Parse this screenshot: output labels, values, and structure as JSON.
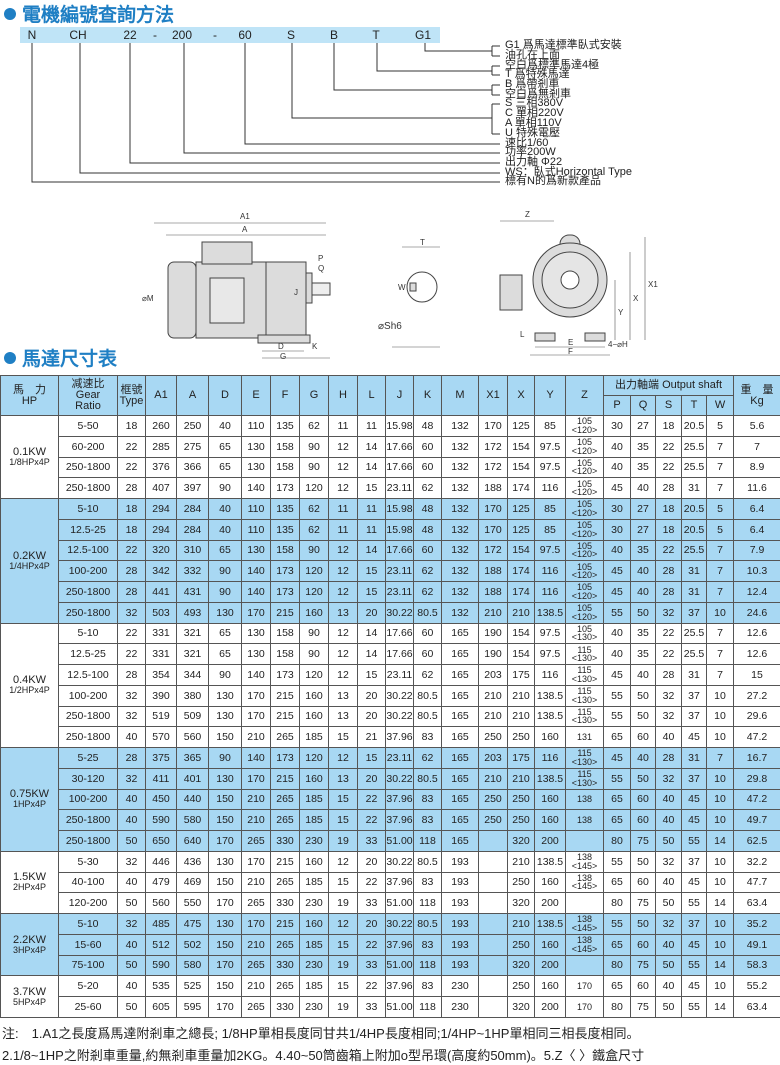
{
  "section1_title": "電機編號查詢方法",
  "code_parts": [
    "N",
    "CH",
    "22",
    "-",
    "200",
    "-",
    "60",
    "S",
    "B",
    "T",
    "G1"
  ],
  "code_legend": [
    "G1 爲馬達標準臥式安裝",
    "油孔在上面",
    "空白爲標準馬達4極",
    "T 爲特殊馬達",
    "B  爲帶剎車",
    "空白爲無剎車",
    "S   三相380V",
    "C   單相220V",
    "A   單相110V",
    "U   特殊電壓",
    "速比1/60",
    "功率200W",
    "出力軸 Φ22",
    "WS：臥式Horizontal Type",
    "標有N的爲新款產品"
  ],
  "drawing_labels": {
    "a1": "A1",
    "a": "A",
    "m": "⌀M",
    "j": "J",
    "p": "P",
    "q": "Q",
    "d": "D",
    "g": "G",
    "k": "K",
    "t": "T",
    "w": "W",
    "s": "⌀Sh6",
    "z": "Z",
    "x1": "X1",
    "x": "X",
    "y": "Y",
    "l": "L",
    "e": "E",
    "f": "F",
    "h": "4−⌀H"
  },
  "section2_title": "馬達尺寸表",
  "headers": {
    "hp": "馬　力\nHP",
    "ratio": "减速比\nGear\nRatio",
    "type": "框號\nType",
    "cols": [
      "A1",
      "A",
      "D",
      "E",
      "F",
      "G",
      "H",
      "L",
      "J",
      "K",
      "M",
      "X1",
      "X",
      "Y",
      "Z"
    ],
    "shaft": "出力軸端 Output shaft",
    "shaft_cols": [
      "P",
      "Q",
      "S",
      "T",
      "W"
    ],
    "weight": "重　量\nKg"
  },
  "colors": {
    "accent": "#1f7fc4",
    "band": "#a8d8f3"
  },
  "groups": [
    {
      "hp": "0.1KW",
      "sub": "1/8HPx4P",
      "blue": false,
      "rows": [
        [
          "5-50",
          "18",
          "260",
          "250",
          "40",
          "110",
          "135",
          "62",
          "11",
          "11",
          "15.98",
          "48",
          "132",
          "170",
          "125",
          "85",
          "105\n<120>",
          "30",
          "27",
          "18",
          "20.5",
          "5",
          "5.6"
        ],
        [
          "60-200",
          "22",
          "285",
          "275",
          "65",
          "130",
          "158",
          "90",
          "12",
          "14",
          "17.66",
          "60",
          "132",
          "172",
          "154",
          "97.5",
          "105\n<120>",
          "40",
          "35",
          "22",
          "25.5",
          "7",
          "7"
        ],
        [
          "250-1800",
          "22",
          "376",
          "366",
          "65",
          "130",
          "158",
          "90",
          "12",
          "14",
          "17.66",
          "60",
          "132",
          "172",
          "154",
          "97.5",
          "105\n<120>",
          "40",
          "35",
          "22",
          "25.5",
          "7",
          "8.9"
        ],
        [
          "250-1800",
          "28",
          "407",
          "397",
          "90",
          "140",
          "173",
          "120",
          "12",
          "15",
          "23.11",
          "62",
          "132",
          "188",
          "174",
          "116",
          "105\n<120>",
          "45",
          "40",
          "28",
          "31",
          "7",
          "11.6"
        ]
      ]
    },
    {
      "hp": "0.2KW",
      "sub": "1/4HPx4P",
      "blue": true,
      "rows": [
        [
          "5-10",
          "18",
          "294",
          "284",
          "40",
          "110",
          "135",
          "62",
          "11",
          "11",
          "15.98",
          "48",
          "132",
          "170",
          "125",
          "85",
          "105\n<120>",
          "30",
          "27",
          "18",
          "20.5",
          "5",
          "6.4"
        ],
        [
          "12.5-25",
          "18",
          "294",
          "284",
          "40",
          "110",
          "135",
          "62",
          "11",
          "11",
          "15.98",
          "48",
          "132",
          "170",
          "125",
          "85",
          "105\n<120>",
          "30",
          "27",
          "18",
          "20.5",
          "5",
          "6.4"
        ],
        [
          "12.5-100",
          "22",
          "320",
          "310",
          "65",
          "130",
          "158",
          "90",
          "12",
          "14",
          "17.66",
          "60",
          "132",
          "172",
          "154",
          "97.5",
          "105\n<120>",
          "40",
          "35",
          "22",
          "25.5",
          "7",
          "7.9"
        ],
        [
          "100-200",
          "28",
          "342",
          "332",
          "90",
          "140",
          "173",
          "120",
          "12",
          "15",
          "23.11",
          "62",
          "132",
          "188",
          "174",
          "116",
          "105\n<120>",
          "45",
          "40",
          "28",
          "31",
          "7",
          "10.3"
        ],
        [
          "250-1800",
          "28",
          "441",
          "431",
          "90",
          "140",
          "173",
          "120",
          "12",
          "15",
          "23.11",
          "62",
          "132",
          "188",
          "174",
          "116",
          "105\n<120>",
          "45",
          "40",
          "28",
          "31",
          "7",
          "12.4"
        ],
        [
          "250-1800",
          "32",
          "503",
          "493",
          "130",
          "170",
          "215",
          "160",
          "13",
          "20",
          "30.22",
          "80.5",
          "132",
          "210",
          "210",
          "138.5",
          "105\n<120>",
          "55",
          "50",
          "32",
          "37",
          "10",
          "24.6"
        ]
      ]
    },
    {
      "hp": "0.4KW",
      "sub": "1/2HPx4P",
      "blue": false,
      "rows": [
        [
          "5-10",
          "22",
          "331",
          "321",
          "65",
          "130",
          "158",
          "90",
          "12",
          "14",
          "17.66",
          "60",
          "165",
          "190",
          "154",
          "97.5",
          "105\n<130>",
          "40",
          "35",
          "22",
          "25.5",
          "7",
          "12.6"
        ],
        [
          "12.5-25",
          "22",
          "331",
          "321",
          "65",
          "130",
          "158",
          "90",
          "12",
          "14",
          "17.66",
          "60",
          "165",
          "190",
          "154",
          "97.5",
          "115\n<130>",
          "40",
          "35",
          "22",
          "25.5",
          "7",
          "12.6"
        ],
        [
          "12.5-100",
          "28",
          "354",
          "344",
          "90",
          "140",
          "173",
          "120",
          "12",
          "15",
          "23.11",
          "62",
          "165",
          "203",
          "175",
          "116",
          "115\n<130>",
          "45",
          "40",
          "28",
          "31",
          "7",
          "15"
        ],
        [
          "100-200",
          "32",
          "390",
          "380",
          "130",
          "170",
          "215",
          "160",
          "13",
          "20",
          "30.22",
          "80.5",
          "165",
          "210",
          "210",
          "138.5",
          "115\n<130>",
          "55",
          "50",
          "32",
          "37",
          "10",
          "27.2"
        ],
        [
          "250-1800",
          "32",
          "519",
          "509",
          "130",
          "170",
          "215",
          "160",
          "13",
          "20",
          "30.22",
          "80.5",
          "165",
          "210",
          "210",
          "138.5",
          "115\n<130>",
          "55",
          "50",
          "32",
          "37",
          "10",
          "29.6"
        ],
        [
          "250-1800",
          "40",
          "570",
          "560",
          "150",
          "210",
          "265",
          "185",
          "15",
          "21",
          "37.96",
          "83",
          "165",
          "250",
          "250",
          "160",
          "131",
          "65",
          "60",
          "40",
          "45",
          "10",
          "47.2"
        ]
      ]
    },
    {
      "hp": "0.75KW",
      "sub": "1HPx4P",
      "blue": true,
      "rows": [
        [
          "5-25",
          "28",
          "375",
          "365",
          "90",
          "140",
          "173",
          "120",
          "12",
          "15",
          "23.11",
          "62",
          "165",
          "203",
          "175",
          "116",
          "115\n<130>",
          "45",
          "40",
          "28",
          "31",
          "7",
          "16.7"
        ],
        [
          "30-120",
          "32",
          "411",
          "401",
          "130",
          "170",
          "215",
          "160",
          "13",
          "20",
          "30.22",
          "80.5",
          "165",
          "210",
          "210",
          "138.5",
          "115\n<130>",
          "55",
          "50",
          "32",
          "37",
          "10",
          "29.8"
        ],
        [
          "100-200",
          "40",
          "450",
          "440",
          "150",
          "210",
          "265",
          "185",
          "15",
          "22",
          "37.96",
          "83",
          "165",
          "250",
          "250",
          "160",
          "138",
          "65",
          "60",
          "40",
          "45",
          "10",
          "47.2"
        ],
        [
          "250-1800",
          "40",
          "590",
          "580",
          "150",
          "210",
          "265",
          "185",
          "15",
          "22",
          "37.96",
          "83",
          "165",
          "250",
          "250",
          "160",
          "138",
          "65",
          "60",
          "40",
          "45",
          "10",
          "49.7"
        ],
        [
          "250-1800",
          "50",
          "650",
          "640",
          "170",
          "265",
          "330",
          "230",
          "19",
          "33",
          "51.00",
          "118",
          "165",
          "",
          "320",
          "200",
          "",
          "80",
          "75",
          "50",
          "55",
          "14",
          "62.5"
        ]
      ]
    },
    {
      "hp": "1.5KW",
      "sub": "2HPx4P",
      "blue": false,
      "rows": [
        [
          "5-30",
          "32",
          "446",
          "436",
          "130",
          "170",
          "215",
          "160",
          "12",
          "20",
          "30.22",
          "80.5",
          "193",
          "",
          "210",
          "138.5",
          "138\n<145>",
          "55",
          "50",
          "32",
          "37",
          "10",
          "32.2"
        ],
        [
          "40-100",
          "40",
          "479",
          "469",
          "150",
          "210",
          "265",
          "185",
          "15",
          "22",
          "37.96",
          "83",
          "193",
          "",
          "250",
          "160",
          "138\n<145>",
          "65",
          "60",
          "40",
          "45",
          "10",
          "47.7"
        ],
        [
          "120-200",
          "50",
          "560",
          "550",
          "170",
          "265",
          "330",
          "230",
          "19",
          "33",
          "51.00",
          "118",
          "193",
          "",
          "320",
          "200",
          "",
          "80",
          "75",
          "50",
          "55",
          "14",
          "63.4"
        ]
      ]
    },
    {
      "hp": "2.2KW",
      "sub": "3HPx4P",
      "blue": true,
      "rows": [
        [
          "5-10",
          "32",
          "485",
          "475",
          "130",
          "170",
          "215",
          "160",
          "12",
          "20",
          "30.22",
          "80.5",
          "193",
          "",
          "210",
          "138.5",
          "138\n<145>",
          "55",
          "50",
          "32",
          "37",
          "10",
          "35.2"
        ],
        [
          "15-60",
          "40",
          "512",
          "502",
          "150",
          "210",
          "265",
          "185",
          "15",
          "22",
          "37.96",
          "83",
          "193",
          "",
          "250",
          "160",
          "138\n<145>",
          "65",
          "60",
          "40",
          "45",
          "10",
          "49.1"
        ],
        [
          "75-100",
          "50",
          "590",
          "580",
          "170",
          "265",
          "330",
          "230",
          "19",
          "33",
          "51.00",
          "118",
          "193",
          "",
          "320",
          "200",
          "",
          "80",
          "75",
          "50",
          "55",
          "14",
          "58.3"
        ]
      ]
    },
    {
      "hp": "3.7KW",
      "sub": "5HPx4P",
      "blue": false,
      "rows": [
        [
          "5-20",
          "40",
          "535",
          "525",
          "150",
          "210",
          "265",
          "185",
          "15",
          "22",
          "37.96",
          "83",
          "230",
          "",
          "250",
          "160",
          "170",
          "65",
          "60",
          "40",
          "45",
          "10",
          "55.2"
        ],
        [
          "25-60",
          "50",
          "605",
          "595",
          "170",
          "265",
          "330",
          "230",
          "19",
          "33",
          "51.00",
          "118",
          "230",
          "",
          "320",
          "200",
          "170",
          "80",
          "75",
          "50",
          "55",
          "14",
          "63.4"
        ]
      ]
    }
  ],
  "notes": [
    "注:　1.A1之長度爲馬達附剎車之總長; 1/8HP單相長度同甘共1/4HP長度相同;1/4HP~1HP單相同三相長度相同。",
    "2.1/8~1HP之附剎車重量,約無剎車重量加2KG。4.40~50筒齒箱上附加o型吊環(高度約50mm)。5.Z〈 〉鐵盒尺寸"
  ]
}
